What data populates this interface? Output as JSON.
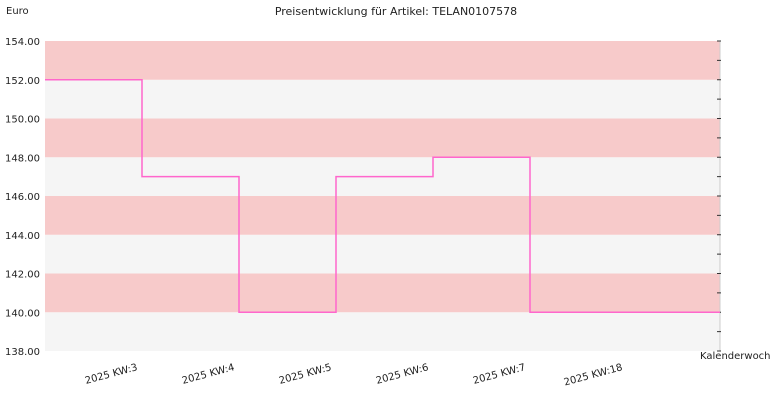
{
  "chart_data": {
    "type": "line",
    "step": true,
    "title": "Preisentwicklung für Artikel: TELAN0107578",
    "ylabel": "Euro",
    "xlabel": "Kalenderwoche",
    "ylim": [
      138,
      154
    ],
    "ytick_step": 2,
    "ytick_labels": [
      "138.00",
      "140.00",
      "142.00",
      "144.00",
      "146.00",
      "148.00",
      "150.00",
      "152.00",
      "154.00"
    ],
    "categories": [
      "2025 KW:3",
      "2025 KW:4",
      "2025 KW:5",
      "2025 KW:6",
      "2025 KW:7",
      "2025 KW:18"
    ],
    "series": [
      {
        "values": [
          152,
          147,
          140,
          147,
          148,
          140
        ],
        "color": "#ff66cc"
      }
    ],
    "band_colors": [
      "#f5f5f5",
      "#f7caca"
    ],
    "grid": false
  }
}
